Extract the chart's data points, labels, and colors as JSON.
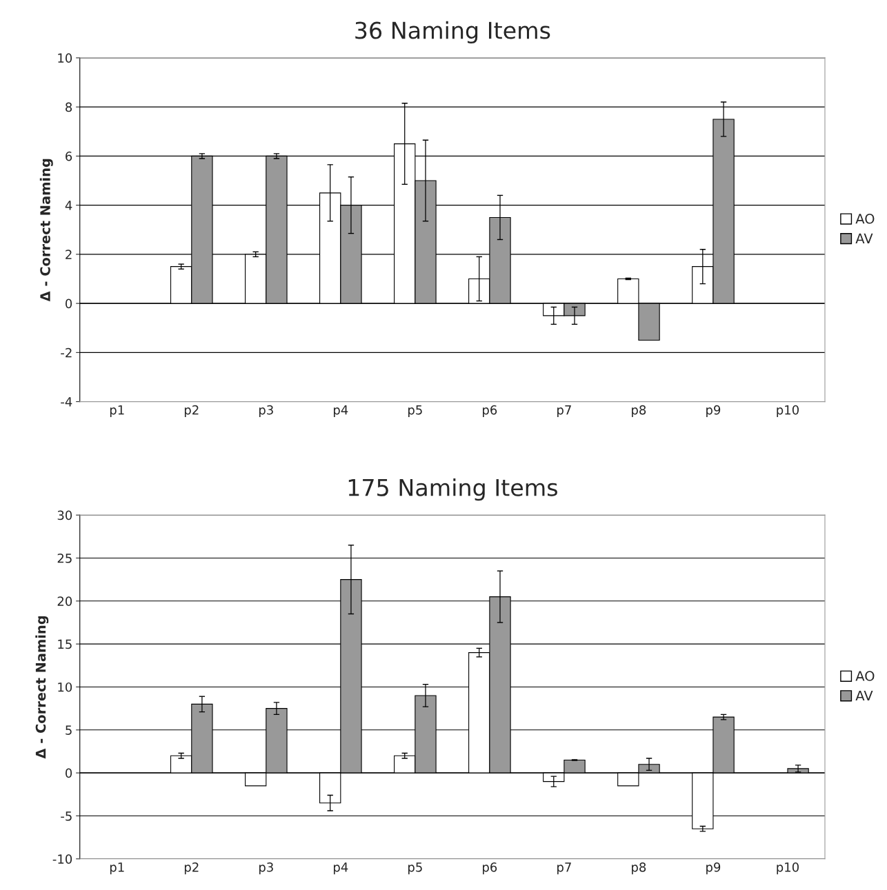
{
  "chart_data": [
    {
      "type": "bar",
      "title": "36 Naming Items",
      "ylabel": "Δ - Correct Naming",
      "categories": [
        "p1",
        "p2",
        "p3",
        "p4",
        "p5",
        "p6",
        "p7",
        "p8",
        "p9",
        "p10"
      ],
      "series": [
        {
          "name": "AO",
          "color": "#ffffff",
          "values": [
            null,
            1.5,
            2,
            4.5,
            6.5,
            1,
            -0.5,
            1,
            1.5,
            null
          ],
          "errors": [
            null,
            0.1,
            0.1,
            1.15,
            1.65,
            0.9,
            0.35,
            0.03,
            0.7,
            null
          ]
        },
        {
          "name": "AV",
          "color": "#999999",
          "values": [
            null,
            6,
            6,
            4,
            5,
            3.5,
            -0.5,
            -1.5,
            7.5,
            null
          ],
          "errors": [
            null,
            0.1,
            0.1,
            1.15,
            1.65,
            0.9,
            0.35,
            null,
            0.7,
            null
          ]
        }
      ],
      "ylim": [
        -4,
        10
      ],
      "yticks": [
        -4,
        -2,
        0,
        2,
        4,
        6,
        8,
        10
      ],
      "grid": "y",
      "legend": "right"
    },
    {
      "type": "bar",
      "title": "175 Naming Items",
      "ylabel": "Δ - Correct Naming",
      "categories": [
        "p1",
        "p2",
        "p3",
        "p4",
        "p5",
        "p6",
        "p7",
        "p8",
        "p9",
        "p10"
      ],
      "series": [
        {
          "name": "AO",
          "color": "#ffffff",
          "values": [
            null,
            2,
            -1.5,
            -3.5,
            2,
            14,
            -1,
            -1.5,
            -6.5,
            null
          ],
          "errors": [
            null,
            0.3,
            null,
            0.9,
            0.3,
            0.5,
            0.6,
            null,
            0.3,
            null
          ]
        },
        {
          "name": "AV",
          "color": "#999999",
          "values": [
            null,
            8,
            7.5,
            22.5,
            9,
            20.5,
            1.5,
            1,
            6.5,
            0.5
          ],
          "errors": [
            null,
            0.9,
            0.7,
            4,
            1.3,
            3,
            0.05,
            0.7,
            0.3,
            0.4
          ]
        }
      ],
      "ylim": [
        -10,
        30
      ],
      "yticks": [
        -10,
        -5,
        0,
        5,
        10,
        15,
        20,
        25,
        30
      ],
      "grid": "y",
      "legend": "right"
    }
  ]
}
